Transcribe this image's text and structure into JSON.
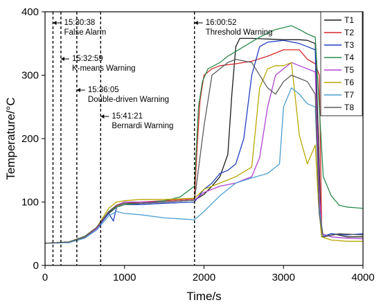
{
  "chart_data": {
    "type": "line",
    "xlabel": "Time/s",
    "ylabel": "Temperature/°C",
    "xlim": [
      0,
      4000
    ],
    "ylim": [
      0,
      400
    ],
    "x_ticks": [
      0,
      1000,
      2000,
      3000,
      4000
    ],
    "y_ticks": [
      0,
      100,
      200,
      300,
      400
    ],
    "grid": false,
    "legend_position": "top-right",
    "annotations": [
      {
        "x": 100,
        "time": "15:30:38",
        "label": "False Alarm"
      },
      {
        "x": 200,
        "time": "15:32:59",
        "label": "K-means Warning"
      },
      {
        "x": 400,
        "time": "15:36:05",
        "label": "Double-driven Warning"
      },
      {
        "x": 700,
        "time": "15:41:21",
        "label": "Bernardi Warning"
      },
      {
        "x": 1880,
        "time": "16:00:52",
        "label": "Threshold Warning"
      }
    ],
    "series": [
      {
        "name": "T1",
        "color": "#1a1a1a",
        "points": [
          [
            0,
            35
          ],
          [
            300,
            37
          ],
          [
            500,
            45
          ],
          [
            650,
            58
          ],
          [
            800,
            82
          ],
          [
            900,
            92
          ],
          [
            1000,
            96
          ],
          [
            1200,
            98
          ],
          [
            1500,
            100
          ],
          [
            1880,
            103
          ],
          [
            2000,
            112
          ],
          [
            2100,
            125
          ],
          [
            2200,
            140
          ],
          [
            2300,
            175
          ],
          [
            2350,
            270
          ],
          [
            2400,
            345
          ],
          [
            2450,
            358
          ],
          [
            2600,
            358
          ],
          [
            2800,
            357
          ],
          [
            3000,
            356
          ],
          [
            3200,
            356
          ],
          [
            3300,
            355
          ],
          [
            3400,
            350
          ],
          [
            3440,
            200
          ],
          [
            3470,
            70
          ],
          [
            3500,
            45
          ],
          [
            3600,
            50
          ],
          [
            3700,
            48
          ],
          [
            3800,
            45
          ],
          [
            4000,
            45
          ]
        ]
      },
      {
        "name": "T2",
        "color": "#d62728",
        "points": [
          [
            0,
            35
          ],
          [
            300,
            37
          ],
          [
            500,
            46
          ],
          [
            650,
            60
          ],
          [
            800,
            84
          ],
          [
            900,
            94
          ],
          [
            1000,
            98
          ],
          [
            1200,
            100
          ],
          [
            1500,
            102
          ],
          [
            1880,
            105
          ],
          [
            1920,
            200
          ],
          [
            1950,
            260
          ],
          [
            2000,
            300
          ],
          [
            2100,
            310
          ],
          [
            2200,
            315
          ],
          [
            2400,
            318
          ],
          [
            2600,
            322
          ],
          [
            2800,
            330
          ],
          [
            3000,
            340
          ],
          [
            3200,
            340
          ],
          [
            3300,
            325
          ],
          [
            3400,
            318
          ],
          [
            3450,
            300
          ],
          [
            3480,
            60
          ],
          [
            3500,
            45
          ],
          [
            3700,
            50
          ],
          [
            4000,
            48
          ]
        ]
      },
      {
        "name": "T3",
        "color": "#1f3fbf",
        "points": [
          [
            0,
            35
          ],
          [
            300,
            36
          ],
          [
            500,
            44
          ],
          [
            650,
            58
          ],
          [
            800,
            82
          ],
          [
            860,
            70
          ],
          [
            900,
            92
          ],
          [
            1000,
            96
          ],
          [
            1200,
            96
          ],
          [
            1500,
            98
          ],
          [
            1880,
            100
          ],
          [
            2000,
            120
          ],
          [
            2100,
            130
          ],
          [
            2200,
            145
          ],
          [
            2300,
            150
          ],
          [
            2400,
            160
          ],
          [
            2500,
            200
          ],
          [
            2600,
            300
          ],
          [
            2700,
            345
          ],
          [
            2800,
            352
          ],
          [
            3000,
            355
          ],
          [
            3200,
            350
          ],
          [
            3300,
            345
          ],
          [
            3400,
            340
          ],
          [
            3440,
            100
          ],
          [
            3480,
            45
          ],
          [
            3600,
            50
          ],
          [
            3800,
            48
          ],
          [
            4000,
            50
          ]
        ]
      },
      {
        "name": "T4",
        "color": "#2a8a4a",
        "points": [
          [
            0,
            35
          ],
          [
            300,
            37
          ],
          [
            500,
            46
          ],
          [
            650,
            60
          ],
          [
            800,
            84
          ],
          [
            900,
            92
          ],
          [
            1000,
            96
          ],
          [
            1200,
            98
          ],
          [
            1500,
            102
          ],
          [
            1700,
            108
          ],
          [
            1880,
            125
          ],
          [
            1930,
            250
          ],
          [
            1980,
            290
          ],
          [
            2050,
            310
          ],
          [
            2200,
            320
          ],
          [
            2300,
            330
          ],
          [
            2500,
            345
          ],
          [
            2700,
            360
          ],
          [
            2900,
            372
          ],
          [
            3100,
            378
          ],
          [
            3200,
            372
          ],
          [
            3300,
            365
          ],
          [
            3400,
            360
          ],
          [
            3450,
            250
          ],
          [
            3500,
            140
          ],
          [
            3600,
            110
          ],
          [
            3700,
            95
          ],
          [
            3800,
            92
          ],
          [
            4000,
            90
          ]
        ]
      },
      {
        "name": "T5",
        "color": "#b040d0",
        "points": [
          [
            0,
            35
          ],
          [
            300,
            36
          ],
          [
            500,
            44
          ],
          [
            650,
            58
          ],
          [
            800,
            85
          ],
          [
            900,
            95
          ],
          [
            1000,
            100
          ],
          [
            1200,
            100
          ],
          [
            1500,
            100
          ],
          [
            1880,
            103
          ],
          [
            2000,
            115
          ],
          [
            2200,
            125
          ],
          [
            2400,
            130
          ],
          [
            2600,
            140
          ],
          [
            2700,
            170
          ],
          [
            2800,
            250
          ],
          [
            2900,
            300
          ],
          [
            3000,
            310
          ],
          [
            3100,
            320
          ],
          [
            3200,
            315
          ],
          [
            3300,
            310
          ],
          [
            3400,
            305
          ],
          [
            3450,
            120
          ],
          [
            3480,
            50
          ],
          [
            3600,
            45
          ],
          [
            3800,
            43
          ],
          [
            4000,
            42
          ]
        ]
      },
      {
        "name": "T6",
        "color": "#b8a800",
        "points": [
          [
            0,
            35
          ],
          [
            300,
            37
          ],
          [
            500,
            45
          ],
          [
            650,
            60
          ],
          [
            800,
            90
          ],
          [
            900,
            100
          ],
          [
            1000,
            102
          ],
          [
            1200,
            104
          ],
          [
            1500,
            104
          ],
          [
            1880,
            106
          ],
          [
            2000,
            120
          ],
          [
            2200,
            130
          ],
          [
            2400,
            140
          ],
          [
            2600,
            155
          ],
          [
            2700,
            280
          ],
          [
            2800,
            310
          ],
          [
            2900,
            315
          ],
          [
            3000,
            315
          ],
          [
            3100,
            320
          ],
          [
            3200,
            205
          ],
          [
            3300,
            160
          ],
          [
            3400,
            190
          ],
          [
            3440,
            100
          ],
          [
            3480,
            45
          ],
          [
            3600,
            40
          ],
          [
            3800,
            38
          ],
          [
            4000,
            38
          ]
        ]
      },
      {
        "name": "T7",
        "color": "#4a9fd0",
        "points": [
          [
            0,
            35
          ],
          [
            300,
            36
          ],
          [
            500,
            43
          ],
          [
            650,
            56
          ],
          [
            800,
            78
          ],
          [
            900,
            85
          ],
          [
            1000,
            82
          ],
          [
            1200,
            80
          ],
          [
            1500,
            75
          ],
          [
            1880,
            72
          ],
          [
            2000,
            85
          ],
          [
            2200,
            110
          ],
          [
            2400,
            130
          ],
          [
            2600,
            138
          ],
          [
            2800,
            145
          ],
          [
            2950,
            160
          ],
          [
            3000,
            250
          ],
          [
            3100,
            280
          ],
          [
            3200,
            270
          ],
          [
            3300,
            255
          ],
          [
            3400,
            250
          ],
          [
            3450,
            90
          ],
          [
            3500,
            45
          ],
          [
            3700,
            50
          ],
          [
            4000,
            48
          ]
        ]
      },
      {
        "name": "T8",
        "color": "#5a5a5a",
        "points": [
          [
            0,
            35
          ],
          [
            300,
            37
          ],
          [
            500,
            45
          ],
          [
            650,
            60
          ],
          [
            800,
            85
          ],
          [
            900,
            95
          ],
          [
            1000,
            98
          ],
          [
            1200,
            98
          ],
          [
            1500,
            100
          ],
          [
            1880,
            103
          ],
          [
            2000,
            220
          ],
          [
            2100,
            300
          ],
          [
            2200,
            310
          ],
          [
            2300,
            320
          ],
          [
            2400,
            325
          ],
          [
            2600,
            320
          ],
          [
            2800,
            280
          ],
          [
            2900,
            270
          ],
          [
            3000,
            290
          ],
          [
            3100,
            300
          ],
          [
            3200,
            295
          ],
          [
            3300,
            290
          ],
          [
            3400,
            270
          ],
          [
            3450,
            80
          ],
          [
            3500,
            45
          ],
          [
            3700,
            50
          ],
          [
            4000,
            48
          ]
        ]
      }
    ]
  }
}
